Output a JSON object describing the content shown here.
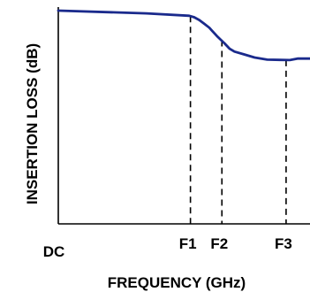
{
  "chart_data": {
    "type": "line",
    "xlabel": "FREQUENCY (GHz)",
    "ylabel": "INSERTION LOSS (dB)",
    "x_ticks": [
      "DC",
      "F1",
      "F2",
      "F3"
    ],
    "series": [
      {
        "color": "#1a2a8c",
        "points": [
          {
            "x": 0.0,
            "y": 100.0
          },
          {
            "x": 0.35,
            "y": 98.7
          },
          {
            "x": 0.52,
            "y": 97.6
          },
          {
            "x": 0.54,
            "y": 96.9
          },
          {
            "x": 0.56,
            "y": 95.6
          },
          {
            "x": 0.58,
            "y": 93.8
          },
          {
            "x": 0.6,
            "y": 92.0
          },
          {
            "x": 0.61,
            "y": 90.7
          },
          {
            "x": 0.63,
            "y": 88.1
          },
          {
            "x": 0.66,
            "y": 84.7
          },
          {
            "x": 0.68,
            "y": 82.2
          },
          {
            "x": 0.7,
            "y": 80.8
          },
          {
            "x": 0.74,
            "y": 79.4
          },
          {
            "x": 0.78,
            "y": 78.0
          },
          {
            "x": 0.83,
            "y": 77.0
          },
          {
            "x": 0.88,
            "y": 76.9
          },
          {
            "x": 0.92,
            "y": 76.8
          },
          {
            "x": 0.95,
            "y": 77.5
          },
          {
            "x": 1.0,
            "y": 77.5
          }
        ]
      }
    ],
    "markers": [
      {
        "label": "F1",
        "x": 0.525,
        "y": 97.4
      },
      {
        "label": "F2",
        "x": 0.65,
        "y": 86.1
      },
      {
        "label": "F3",
        "x": 0.905,
        "y": 76.8
      }
    ],
    "origin_label": "DC",
    "xlim": [
      0,
      1
    ],
    "ylim": [
      0,
      100
    ]
  }
}
